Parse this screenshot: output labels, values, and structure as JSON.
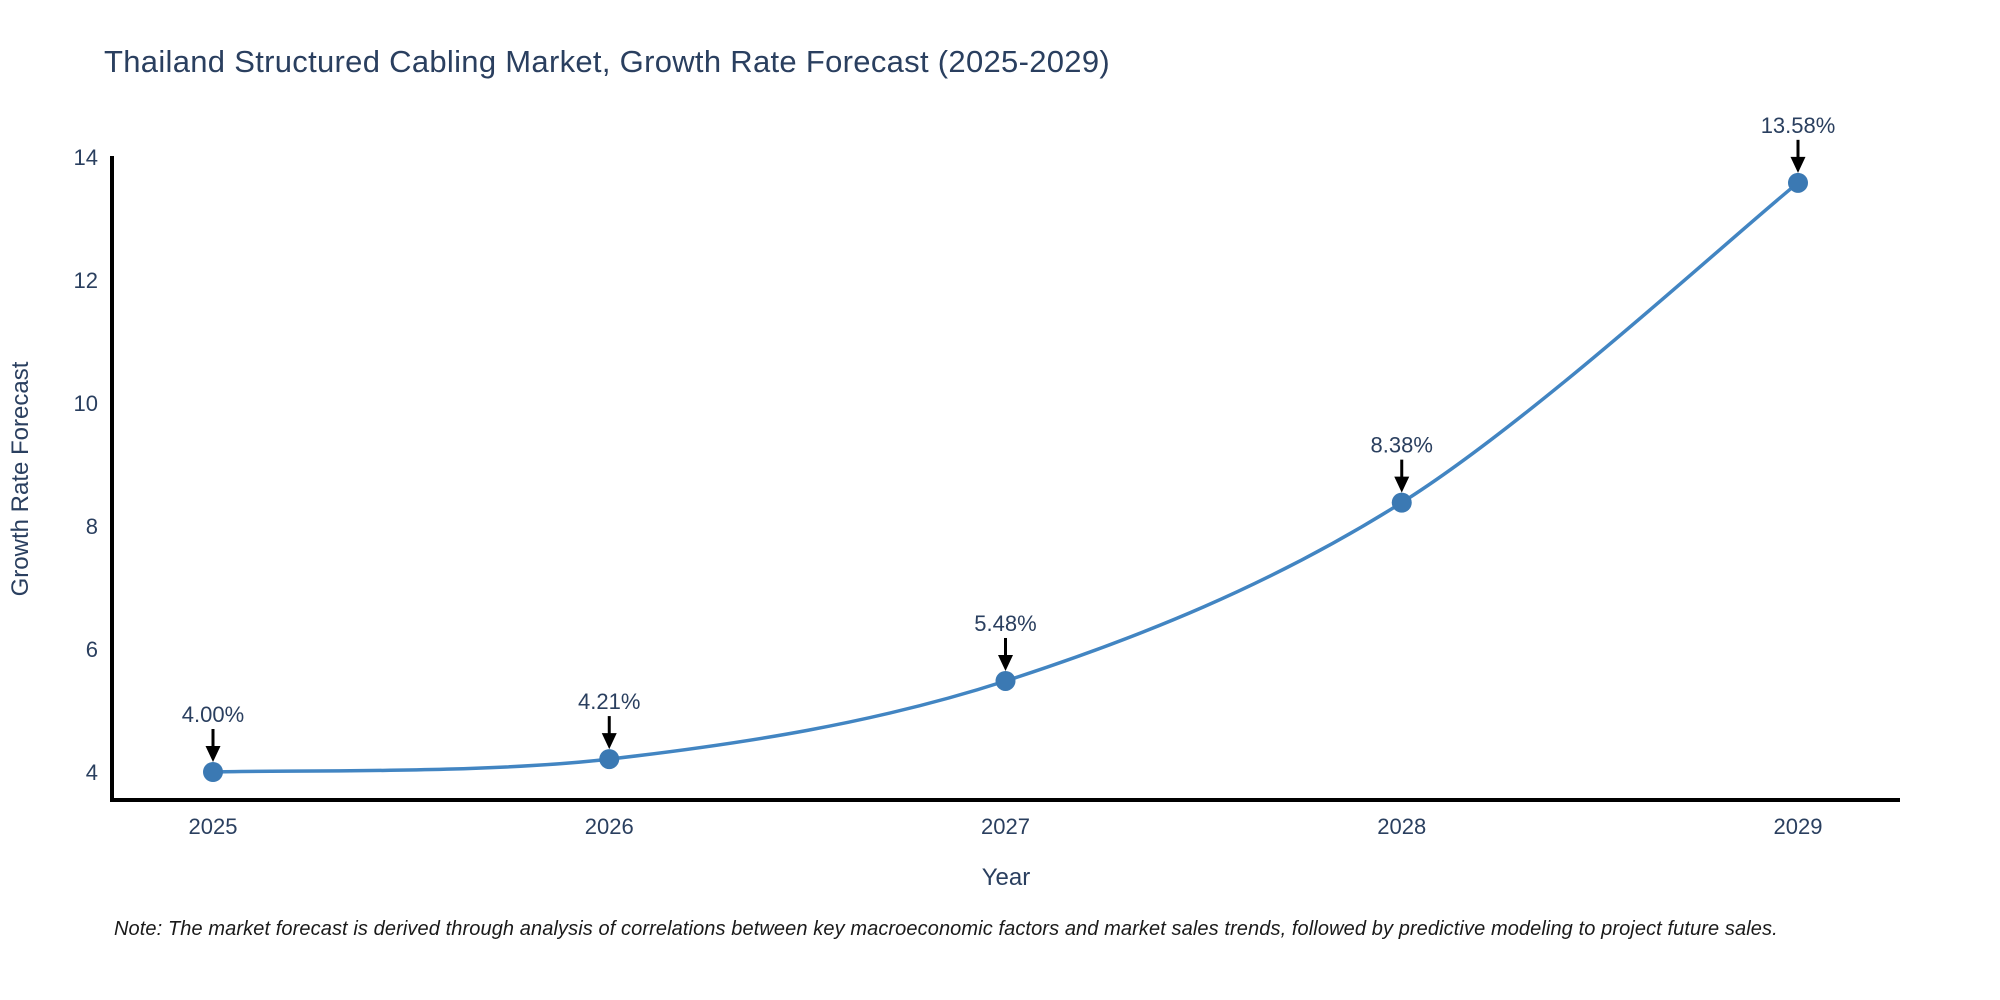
{
  "chart_data": {
    "type": "line",
    "title": "Thailand Structured Cabling Market, Growth Rate Forecast (2025-2029)",
    "xlabel": "Year",
    "ylabel": "Growth Rate Forecast",
    "categories": [
      "2025",
      "2026",
      "2027",
      "2028",
      "2029"
    ],
    "series": [
      {
        "name": "Growth Rate Forecast",
        "values": [
          4.0,
          4.21,
          5.48,
          8.38,
          13.58
        ],
        "point_labels": [
          "4.00%",
          "4.21%",
          "5.48%",
          "8.38%",
          "13.58%"
        ]
      }
    ],
    "yticks": [
      4,
      6,
      8,
      10,
      12,
      14
    ],
    "ylim": [
      3.54,
      14.0
    ],
    "grid": false,
    "legend_position": "none",
    "line_shape": "spline",
    "annotation_style": "value labels with black down-arrows pointing to markers",
    "colors": {
      "line": "#4285c2",
      "marker": "#3b79b3",
      "axis": "#000000",
      "text": "#2a3f5f",
      "arrow": "#000000",
      "note_text": "#1a1a1a",
      "background": "#ffffff"
    }
  },
  "note": {
    "text": "Note: The market forecast is derived through analysis of correlations between key macroeconomic factors and market sales trends, followed by predictive modeling to project future sales."
  }
}
